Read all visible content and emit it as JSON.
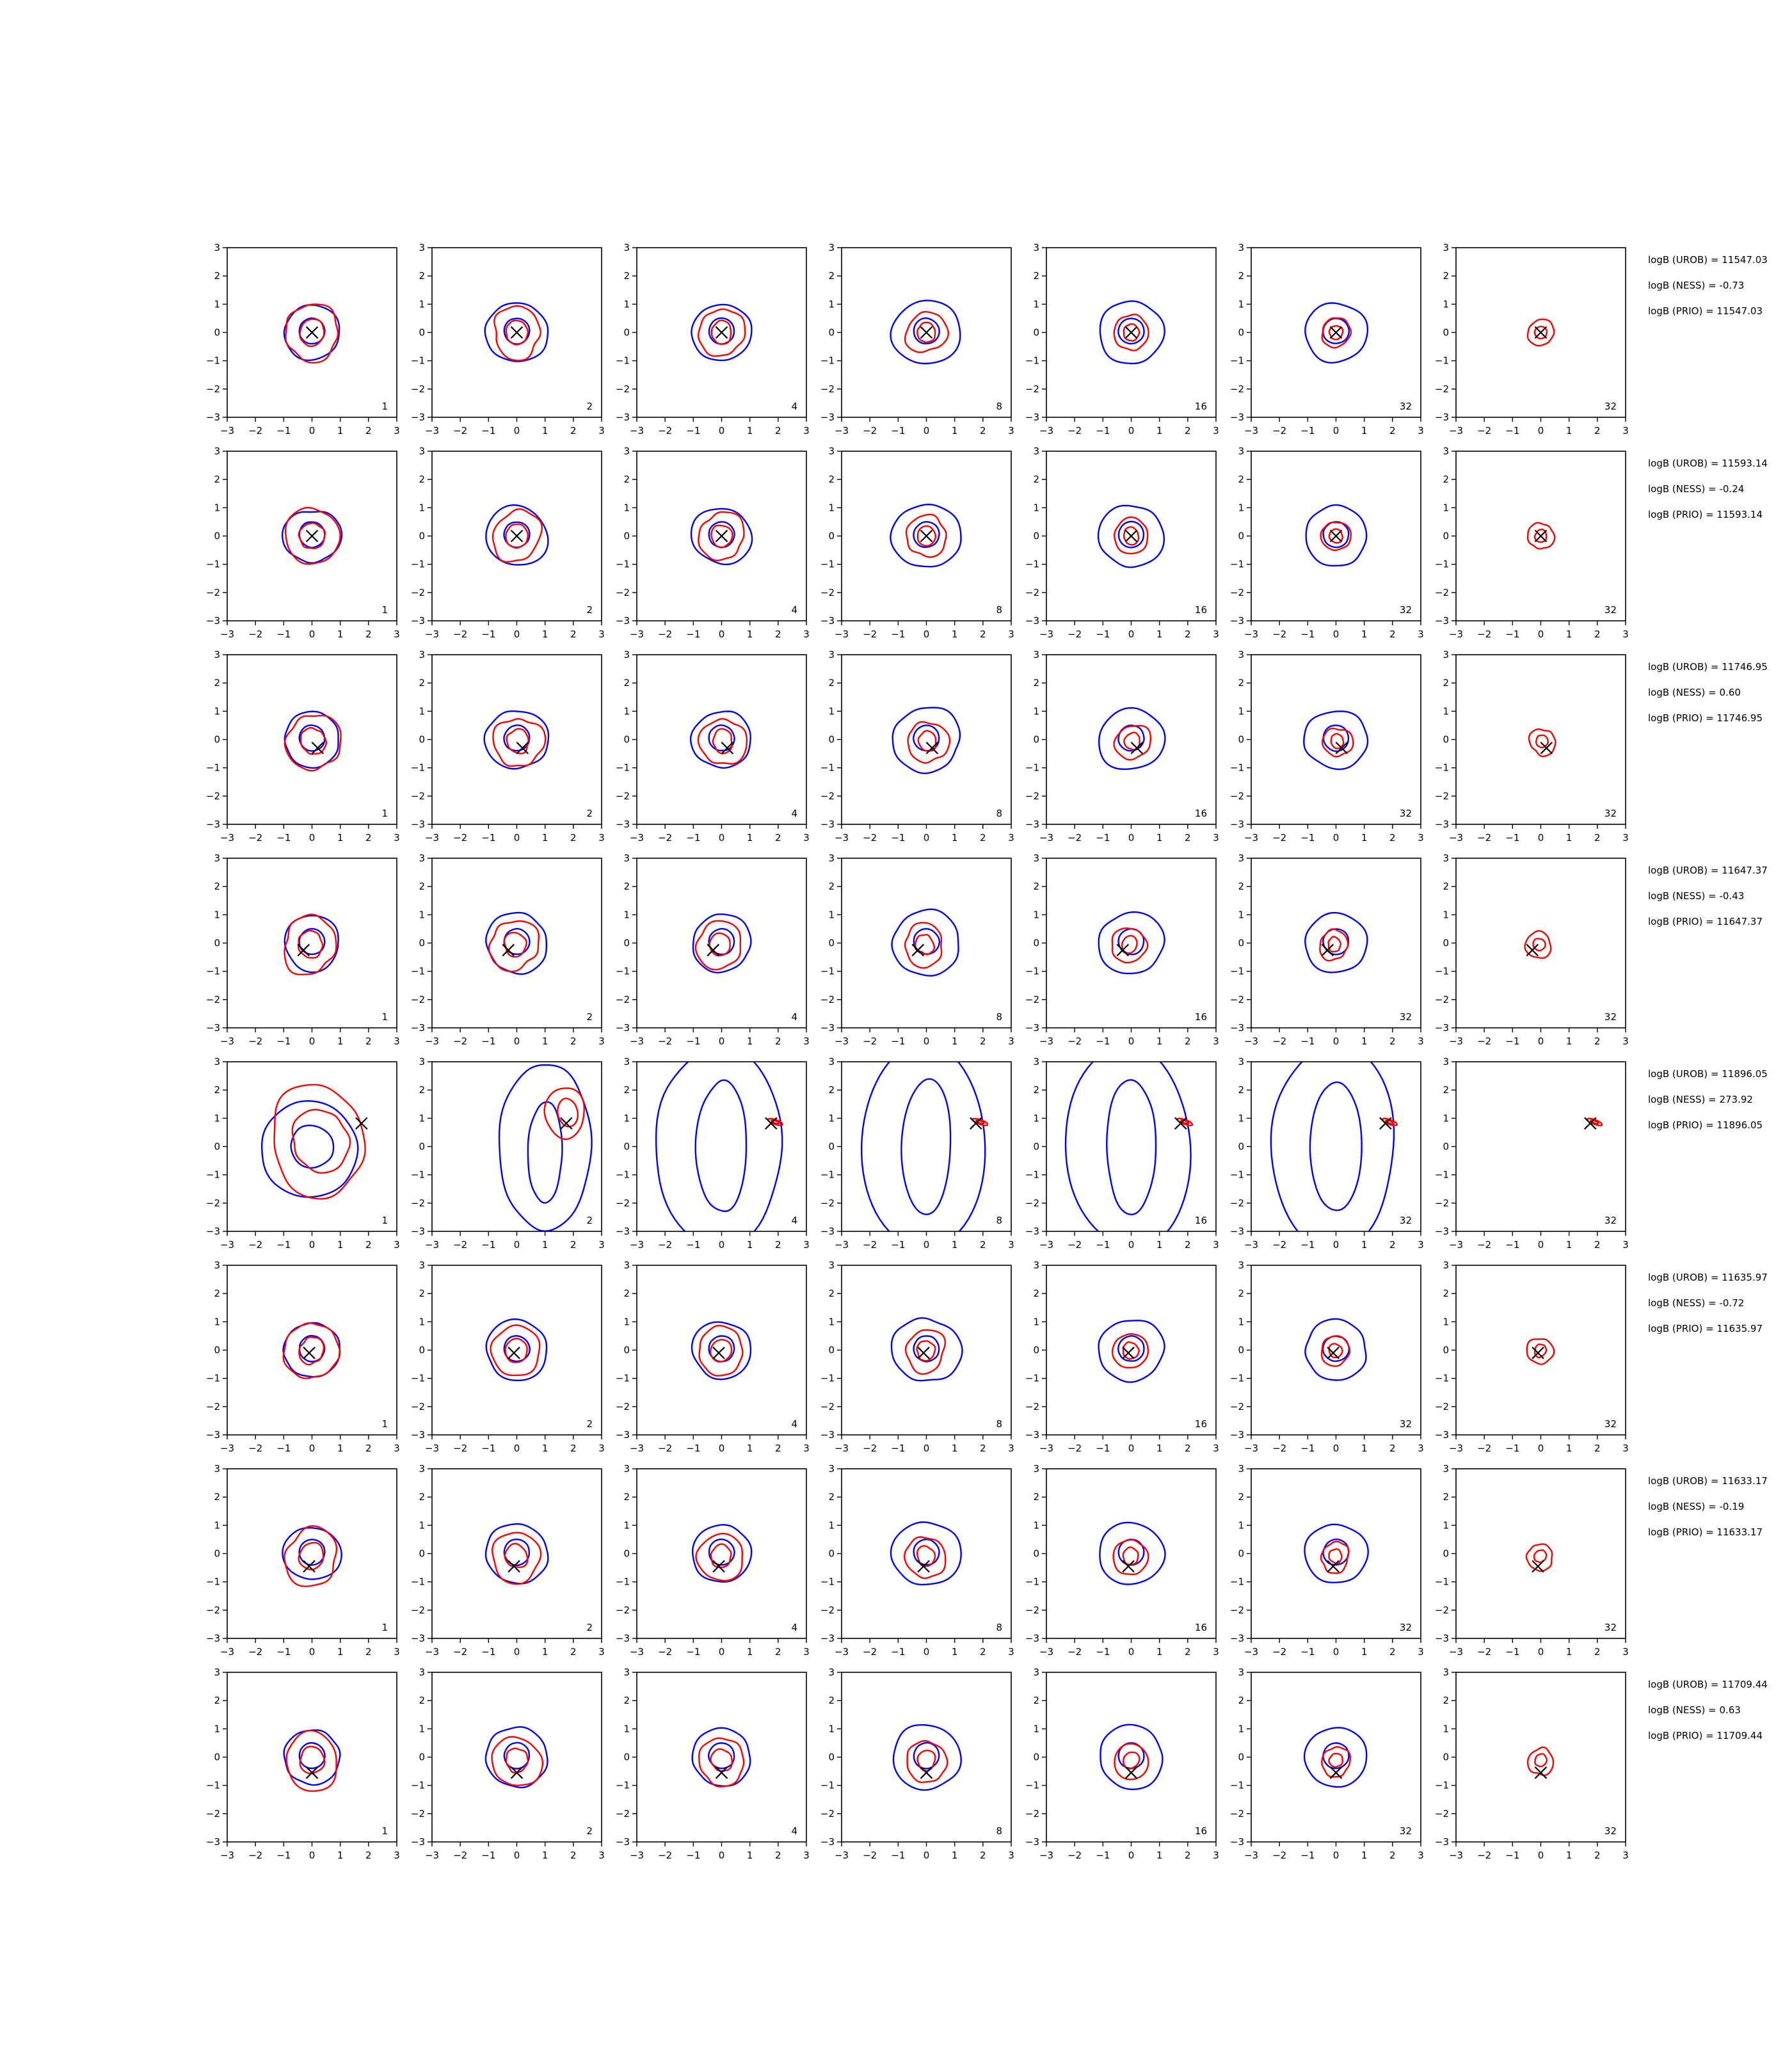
{
  "chart_data": {
    "type": "contour-grid",
    "xlim": [
      -3,
      3
    ],
    "ylim": [
      -3,
      3
    ],
    "xticks": [
      -3,
      -2,
      -1,
      0,
      1,
      2,
      3
    ],
    "yticks": [
      -3,
      -2,
      -1,
      0,
      1,
      2,
      3
    ],
    "xtick_labels": [
      "−3",
      "−2",
      "−1",
      "0",
      "1",
      "2",
      "3"
    ],
    "ytick_labels": [
      "−3",
      "−2",
      "−1",
      "0",
      "1",
      "2",
      "3"
    ],
    "colors": {
      "blue": "#0000ff",
      "red": "#ff0000",
      "marker": "#000000",
      "axes": "#000000"
    },
    "column_labels": [
      "1",
      "2",
      "4",
      "8",
      "16",
      "32",
      "32"
    ],
    "column_has_blue": [
      true,
      true,
      true,
      true,
      true,
      true,
      false
    ],
    "rows": [
      {
        "marker": [
          0.0,
          0.0
        ],
        "stats": [
          "logB (UROB) = 11547.03",
          "logB (NESS) = -0.73",
          "logB (PRIO) = 11547.03"
        ]
      },
      {
        "marker": [
          0.0,
          0.0
        ],
        "stats": [
          "logB (UROB) = 11593.14",
          "logB (NESS) = -0.24",
          "logB (PRIO) = 11593.14"
        ]
      },
      {
        "marker": [
          0.2,
          -0.3
        ],
        "stats": [
          "logB (UROB) = 11746.95",
          "logB (NESS) = 0.60",
          "logB (PRIO) = 11746.95"
        ]
      },
      {
        "marker": [
          -0.3,
          -0.25
        ],
        "stats": [
          "logB (UROB) = 11647.37",
          "logB (NESS) = -0.43",
          "logB (PRIO) = 11647.37"
        ]
      },
      {
        "marker": [
          1.75,
          0.82
        ],
        "stats": [
          "logB (UROB) = 11896.05",
          "logB (NESS) = 273.92",
          "logB (PRIO) = 11896.05"
        ]
      },
      {
        "marker": [
          -0.1,
          -0.1
        ],
        "stats": [
          "logB (UROB) = 11635.97",
          "logB (NESS) = -0.72",
          "logB (PRIO) = 11635.97"
        ]
      },
      {
        "marker": [
          -0.1,
          -0.45
        ],
        "stats": [
          "logB (UROB) = 11633.17",
          "logB (NESS) = -0.19",
          "logB (PRIO) = 11633.17"
        ]
      },
      {
        "marker": [
          0.0,
          -0.55
        ],
        "stats": [
          "logB (UROB) = 11709.44",
          "logB (NESS) = 0.63",
          "logB (PRIO) = 11709.44"
        ]
      }
    ]
  }
}
